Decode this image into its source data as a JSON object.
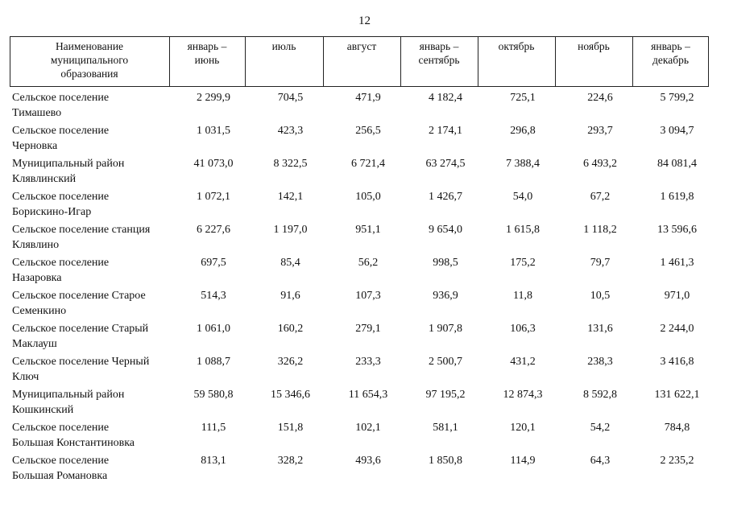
{
  "page_number": "12",
  "table": {
    "header": [
      [
        "Наименование",
        "муниципального",
        "образования"
      ],
      [
        "январь –",
        "июнь"
      ],
      [
        "июль"
      ],
      [
        "август"
      ],
      [
        "январь –",
        "сентябрь"
      ],
      [
        "октябрь"
      ],
      [
        "ноябрь"
      ],
      [
        "январь –",
        "декабрь"
      ]
    ],
    "rows": [
      {
        "name": [
          "Сельское поселение",
          "Тимашево"
        ],
        "values": [
          "2 299,9",
          "704,5",
          "471,9",
          "4 182,4",
          "725,1",
          "224,6",
          "5 799,2"
        ]
      },
      {
        "name": [
          "Сельское поселение",
          "Черновка"
        ],
        "values": [
          "1 031,5",
          "423,3",
          "256,5",
          "2 174,1",
          "296,8",
          "293,7",
          "3 094,7"
        ]
      },
      {
        "name": [
          "Муниципальный район",
          "Клявлинский"
        ],
        "values": [
          "41 073,0",
          "8 322,5",
          "6 721,4",
          "63 274,5",
          "7 388,4",
          "6 493,2",
          "84 081,4"
        ]
      },
      {
        "name": [
          "Сельское поселение",
          "Борискино-Игар"
        ],
        "values": [
          "1 072,1",
          "142,1",
          "105,0",
          "1 426,7",
          "54,0",
          "67,2",
          "1 619,8"
        ]
      },
      {
        "name": [
          "Сельское поселение станция",
          "Клявлино"
        ],
        "values": [
          "6 227,6",
          "1 197,0",
          "951,1",
          "9 654,0",
          "1 615,8",
          "1 118,2",
          "13 596,6"
        ]
      },
      {
        "name": [
          "Сельское поселение",
          "Назаровка"
        ],
        "values": [
          "697,5",
          "85,4",
          "56,2",
          "998,5",
          "175,2",
          "79,7",
          "1 461,3"
        ]
      },
      {
        "name": [
          "Сельское поселение Старое",
          "Семенкино"
        ],
        "values": [
          "514,3",
          "91,6",
          "107,3",
          "936,9",
          "11,8",
          "10,5",
          "971,0"
        ]
      },
      {
        "name": [
          "Сельское поселение Старый",
          "Маклауш"
        ],
        "values": [
          "1 061,0",
          "160,2",
          "279,1",
          "1 907,8",
          "106,3",
          "131,6",
          "2 244,0"
        ]
      },
      {
        "name": [
          "Сельское поселение Черный",
          "Ключ"
        ],
        "values": [
          "1 088,7",
          "326,2",
          "233,3",
          "2 500,7",
          "431,2",
          "238,3",
          "3 416,8"
        ]
      },
      {
        "name": [
          "Муниципальный район",
          "Кошкинский"
        ],
        "values": [
          "59 580,8",
          "15 346,6",
          "11 654,3",
          "97 195,2",
          "12 874,3",
          "8 592,8",
          "131 622,1"
        ]
      },
      {
        "name": [
          "Сельское поселение",
          "Большая Константиновка"
        ],
        "values": [
          "111,5",
          "151,8",
          "102,1",
          "581,1",
          "120,1",
          "54,2",
          "784,8"
        ]
      },
      {
        "name": [
          "Сельское поселение",
          "Большая Романовка"
        ],
        "values": [
          "813,1",
          "328,2",
          "493,6",
          "1 850,8",
          "114,9",
          "64,3",
          "2 235,2"
        ]
      }
    ]
  }
}
